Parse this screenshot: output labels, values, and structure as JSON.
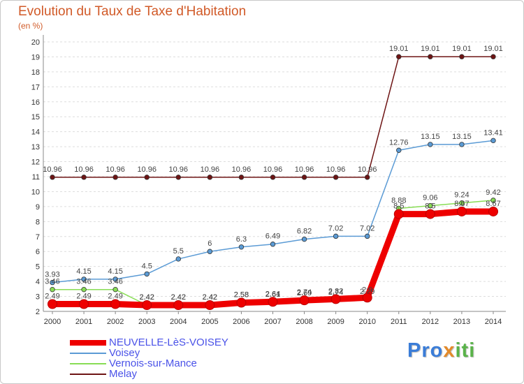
{
  "title": "Evolution du Taux de Taxe d'Habitation",
  "subtitle": "(en %)",
  "logo": {
    "part1": "Pro",
    "part2": "x",
    "part3": "iti"
  },
  "colors": {
    "NEUVELLE-LèS-VOISEY": "#ee0000",
    "Voisey": "#5b9bd5",
    "Vernois-sur-Mance": "#88dd55",
    "Melay": "#6e1414",
    "axis": "#888888",
    "grid": "#dddddd"
  },
  "chart_data": {
    "type": "line",
    "title": "Evolution du Taux de Taxe d'Habitation",
    "ylabel": "(en %)",
    "xlabel": "",
    "ylim": [
      2,
      20
    ],
    "yticks": [
      "2",
      "3",
      "4",
      "5",
      "6",
      "7",
      "8",
      "9",
      "10",
      "11",
      "12",
      "13",
      "14",
      "15",
      "16",
      "17",
      "18",
      "19",
      "20"
    ],
    "grid": true,
    "legend": "bottom-left",
    "categories": [
      "2000",
      "2001",
      "2002",
      "2003",
      "2004",
      "2005",
      "2006",
      "2007",
      "2008",
      "2009",
      "2010",
      "2011",
      "2012",
      "2013",
      "2014"
    ],
    "series": [
      {
        "name": "NEUVELLE-LèS-VOISEY",
        "values": [
          2.49,
          2.49,
          2.49,
          2.42,
          2.42,
          2.42,
          2.58,
          2.64,
          2.74,
          2.82,
          2.92,
          8.5,
          8.5,
          8.67,
          8.67
        ],
        "labels": [
          "2.49",
          "2.49",
          "2.49",
          "2.42",
          "2.42",
          "2.42",
          "2.58",
          "2.64",
          "2.74",
          "2.82",
          "2.9",
          "8.5",
          "8.5",
          "8.67",
          "8.67"
        ]
      },
      {
        "name": "Voisey",
        "values": [
          3.93,
          4.15,
          4.15,
          4.5,
          5.5,
          6,
          6.3,
          6.49,
          6.82,
          7.02,
          7.02,
          12.76,
          13.15,
          13.15,
          13.41
        ],
        "labels": [
          "3.93",
          "4.15",
          "4.15",
          "4.5",
          "5.5",
          "6",
          "6.3",
          "6.49",
          "6.82",
          "7.02",
          "7.02",
          "12.76",
          "13.15",
          "13.15",
          "13.41"
        ]
      },
      {
        "name": "Vernois-sur-Mance",
        "values": [
          3.46,
          3.46,
          3.46,
          2.42,
          2.42,
          2.42,
          2.58,
          2.61,
          2.69,
          2.74,
          2.79,
          8.88,
          9.06,
          9.24,
          9.42
        ],
        "labels": [
          "3.46",
          "3.46",
          "3.46",
          "2.42",
          "2.42",
          "2.42",
          "2.58",
          "2.61",
          "2.69",
          "2.74",
          "2.79",
          "8.88",
          "9.06",
          "9.24",
          "9.42"
        ]
      },
      {
        "name": "Melay",
        "values": [
          10.96,
          10.96,
          10.96,
          10.96,
          10.96,
          10.96,
          10.96,
          10.96,
          10.96,
          10.96,
          10.96,
          19.01,
          19.01,
          19.01,
          19.01
        ],
        "labels": [
          "10.96",
          "10.96",
          "10.96",
          "10.96",
          "10.96",
          "10.96",
          "10.96",
          "10.96",
          "10.96",
          "10.96",
          "10.96",
          "19.01",
          "19.01",
          "19.01",
          "19.01"
        ]
      }
    ]
  }
}
